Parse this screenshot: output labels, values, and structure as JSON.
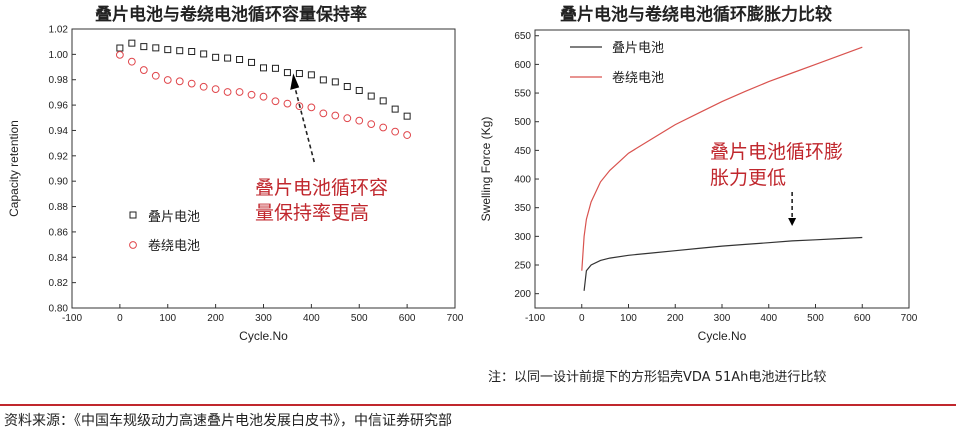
{
  "chart_data": [
    {
      "type": "scatter",
      "title": "叠片电池与卷绕电池循环容量保持率",
      "xlabel": "Cycle.No",
      "ylabel": "Capacity retention",
      "xlim": [
        -100,
        700
      ],
      "ylim": [
        0.8,
        1.02
      ],
      "xticks": [
        -100,
        0,
        100,
        200,
        300,
        400,
        500,
        600,
        700
      ],
      "yticks": [
        0.8,
        0.82,
        0.84,
        0.86,
        0.88,
        0.9,
        0.92,
        0.94,
        0.96,
        0.98,
        1.0,
        1.02
      ],
      "legend_position": "center-left",
      "series": [
        {
          "name": "叠片电池",
          "marker": "square",
          "color": "#222222",
          "x": [
            0,
            25,
            50,
            75,
            100,
            125,
            150,
            175,
            200,
            225,
            250,
            275,
            300,
            325,
            350,
            375,
            400,
            425,
            450,
            475,
            500,
            525,
            550,
            575,
            600
          ],
          "y": [
            1.005,
            1.007,
            1.006,
            1.004,
            1.003,
            1.002,
            1.001,
            1.0,
            0.999,
            0.998,
            0.996,
            0.994,
            0.991,
            0.989,
            0.986,
            0.984,
            0.982,
            0.979,
            0.977,
            0.974,
            0.97,
            0.966,
            0.962,
            0.958,
            0.953
          ]
        },
        {
          "name": "卷绕电池",
          "marker": "circle",
          "color": "#e0474c",
          "x": [
            0,
            25,
            50,
            75,
            100,
            125,
            150,
            175,
            200,
            225,
            250,
            275,
            300,
            325,
            350,
            375,
            400,
            425,
            450,
            475,
            500,
            525,
            550,
            575,
            600
          ],
          "y": [
            0.999,
            0.994,
            0.988,
            0.984,
            0.981,
            0.979,
            0.978,
            0.976,
            0.974,
            0.972,
            0.97,
            0.968,
            0.965,
            0.963,
            0.961,
            0.959,
            0.957,
            0.955,
            0.953,
            0.951,
            0.949,
            0.946,
            0.944,
            0.941,
            0.938
          ]
        }
      ],
      "annotation": [
        "叠片电池循环容",
        "量保持率更高"
      ]
    },
    {
      "type": "line",
      "title": "叠片电池与卷绕电池循环膨胀力比较",
      "xlabel": "Cycle.No",
      "ylabel": "Swelling Force (Kg)",
      "xlim": [
        -100,
        700
      ],
      "ylim": [
        175,
        660
      ],
      "xticks": [
        -100,
        0,
        100,
        200,
        300,
        400,
        500,
        600,
        700
      ],
      "yticks": [
        200,
        250,
        300,
        350,
        400,
        450,
        500,
        550,
        600,
        650
      ],
      "legend_position": "top-left",
      "series": [
        {
          "name": "叠片电池",
          "color": "#333333",
          "x": [
            5,
            10,
            20,
            40,
            60,
            100,
            150,
            200,
            250,
            300,
            350,
            400,
            450,
            500,
            550,
            600
          ],
          "y": [
            205,
            240,
            250,
            258,
            262,
            267,
            271,
            275,
            279,
            283,
            286,
            289,
            292,
            294,
            296,
            298
          ]
        },
        {
          "name": "卷绕电池",
          "color": "#d9534f",
          "x": [
            0,
            5,
            10,
            20,
            40,
            60,
            80,
            100,
            150,
            200,
            250,
            300,
            350,
            400,
            450,
            500,
            550,
            600
          ],
          "y": [
            240,
            300,
            330,
            360,
            395,
            415,
            430,
            445,
            470,
            495,
            515,
            535,
            553,
            570,
            585,
            600,
            615,
            630
          ]
        }
      ],
      "annotation": [
        "叠片电池循环膨",
        "胀力更低"
      ]
    }
  ],
  "note": "注：以同一设计前提下的方形铝壳VDA 51Ah电池进行比较",
  "source": "资料来源：《中国车规级动力高速叠片电池发展白皮书》，中信证券研究部"
}
